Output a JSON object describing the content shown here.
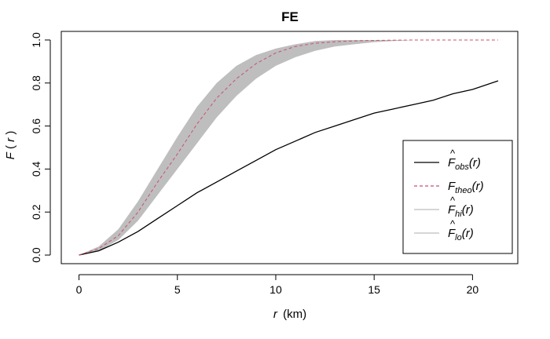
{
  "chart_data": {
    "type": "line",
    "title": "FE",
    "xlabel": {
      "var": "r",
      "unit": "(km)"
    },
    "ylabel": {
      "var": "F",
      "arg": "r"
    },
    "xlim": [
      -0.9,
      22.3
    ],
    "ylim": [
      -0.04,
      1.04
    ],
    "xticks": [
      0,
      5,
      10,
      15,
      20
    ],
    "yticks": [
      0.0,
      0.2,
      0.4,
      0.6,
      0.8,
      1.0
    ],
    "xtick_labels": [
      "0",
      "5",
      "10",
      "15",
      "20"
    ],
    "ytick_labels": [
      "0.0",
      "0.2",
      "0.4",
      "0.6",
      "0.8",
      "1.0"
    ],
    "grid": false,
    "legend_position": "bottom-right",
    "series": [
      {
        "key": "obs",
        "color": "#000000",
        "dash": "solid",
        "x": [
          0,
          1,
          2,
          3,
          4,
          5,
          6,
          7,
          8,
          9,
          10,
          11,
          12,
          13,
          14,
          15,
          16,
          17,
          18,
          19,
          20,
          21.3
        ],
        "y": [
          0.0,
          0.02,
          0.06,
          0.11,
          0.17,
          0.23,
          0.29,
          0.34,
          0.39,
          0.44,
          0.49,
          0.53,
          0.57,
          0.6,
          0.63,
          0.66,
          0.68,
          0.7,
          0.72,
          0.75,
          0.77,
          0.81
        ]
      },
      {
        "key": "theo",
        "color": "#c8526e",
        "dash": "dashed",
        "x": [
          0,
          1,
          2,
          3,
          4,
          5,
          6,
          7,
          8,
          9,
          10,
          11,
          12,
          13,
          14,
          15,
          16,
          17,
          18,
          19,
          20,
          21.3
        ],
        "y": [
          0.0,
          0.03,
          0.09,
          0.2,
          0.34,
          0.47,
          0.61,
          0.73,
          0.82,
          0.89,
          0.94,
          0.97,
          0.985,
          0.992,
          0.996,
          0.998,
          0.999,
          1.0,
          1.0,
          1.0,
          1.0,
          1.0
        ]
      },
      {
        "key": "hi",
        "color": "#bebebe",
        "dash": "solid",
        "x": [
          0,
          1,
          2,
          3,
          4,
          5,
          6,
          7,
          8,
          9,
          10,
          11,
          12,
          13,
          14,
          15,
          16,
          17,
          18,
          19,
          20,
          21.3
        ],
        "y": [
          0.0,
          0.04,
          0.12,
          0.25,
          0.4,
          0.55,
          0.69,
          0.8,
          0.88,
          0.93,
          0.96,
          0.98,
          0.995,
          1.0,
          1.0,
          1.0,
          1.0,
          1.0,
          1.0,
          1.0,
          1.0,
          1.0
        ]
      },
      {
        "key": "lo",
        "color": "#bebebe",
        "dash": "solid",
        "x": [
          0,
          1,
          2,
          3,
          4,
          5,
          6,
          7,
          8,
          9,
          10,
          11,
          12,
          13,
          14,
          15,
          16,
          17,
          18,
          19,
          20,
          21.3
        ],
        "y": [
          0.0,
          0.02,
          0.07,
          0.16,
          0.28,
          0.4,
          0.52,
          0.64,
          0.74,
          0.82,
          0.88,
          0.92,
          0.95,
          0.97,
          0.98,
          0.99,
          0.995,
          1.0,
          1.0,
          1.0,
          1.0,
          1.0
        ]
      }
    ],
    "legend": [
      {
        "key": "obs",
        "base": "F",
        "hat": true,
        "sub": "obs",
        "arg": "(r)"
      },
      {
        "key": "theo",
        "base": "F",
        "hat": false,
        "sub": "theo",
        "arg": "(r)"
      },
      {
        "key": "hi",
        "base": "F",
        "hat": true,
        "sub": "hi",
        "arg": "(r)"
      },
      {
        "key": "lo",
        "base": "F",
        "hat": true,
        "sub": "lo",
        "arg": "(r)"
      }
    ]
  }
}
